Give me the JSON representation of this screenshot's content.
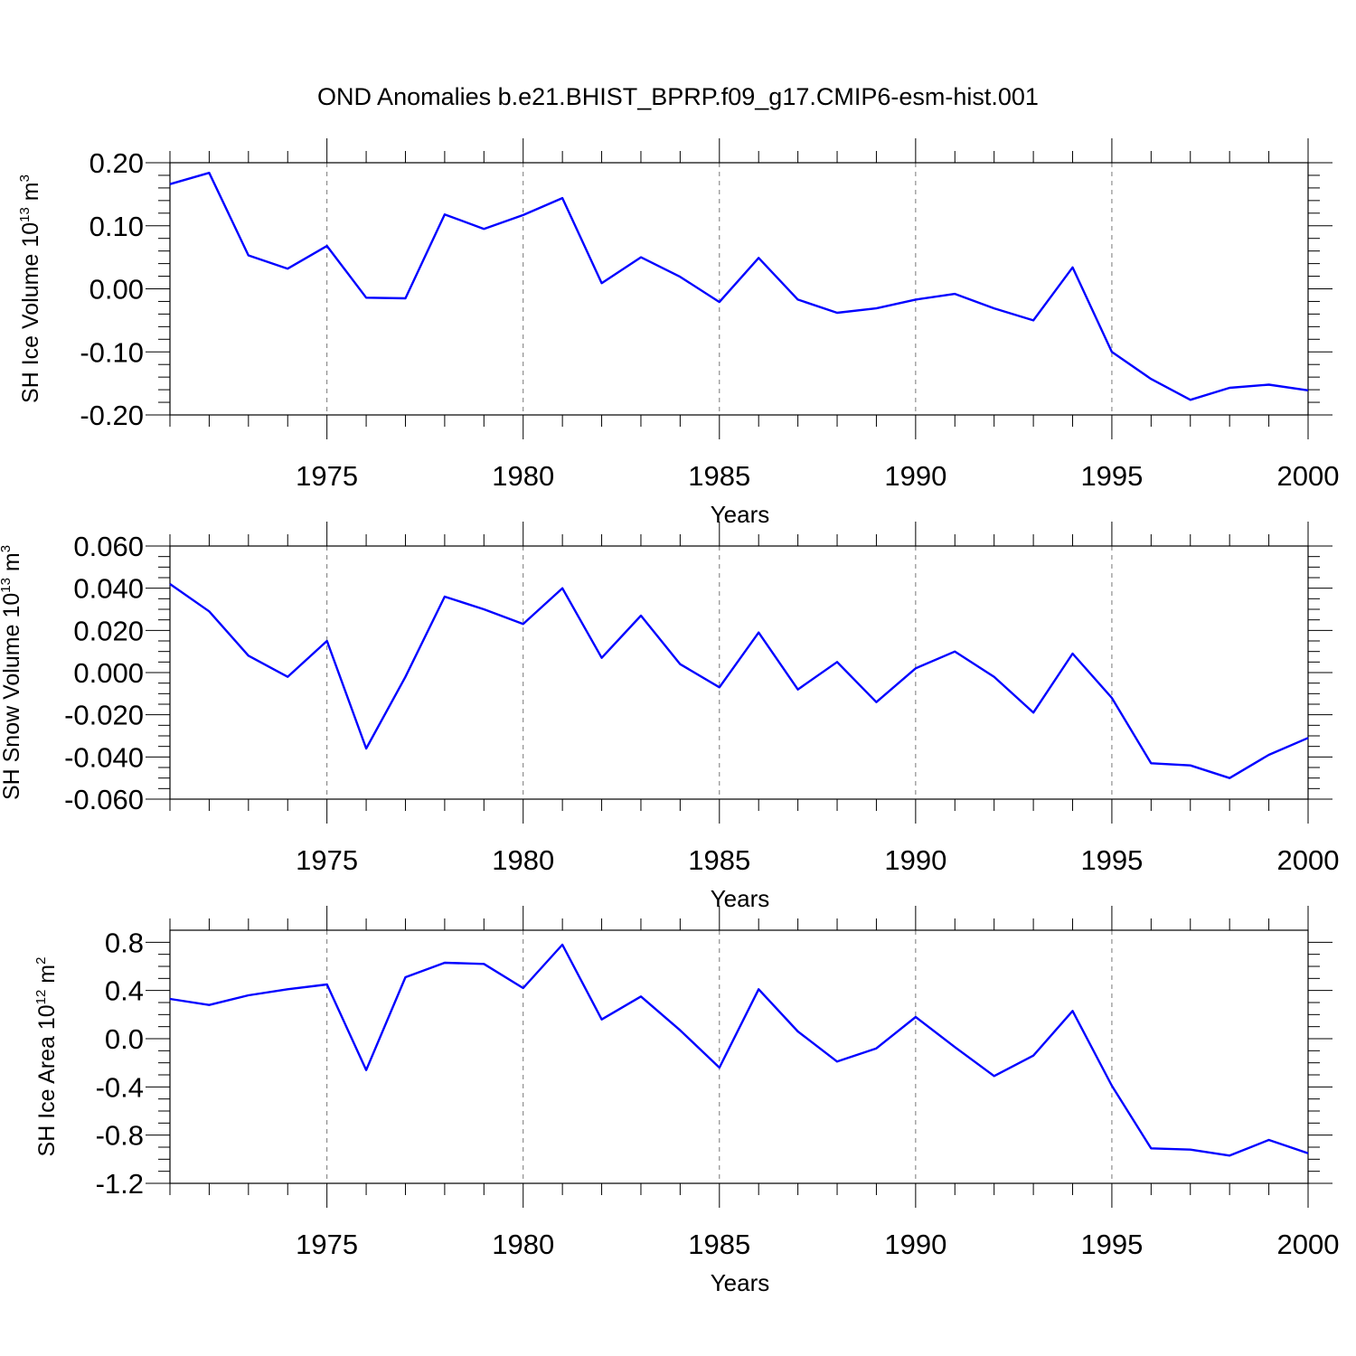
{
  "title": "OND Anomalies b.e21.BHIST_BPRP.f09_g17.CMIP6-esm-hist.001",
  "chart_data": [
    {
      "type": "line",
      "xlabel": "Years",
      "ylabel": {
        "prefix": "SH Ice Volume 10",
        "exp": "13",
        "unit": " m",
        "unit_exp": "3"
      },
      "xlim": [
        1971,
        2000
      ],
      "ylim": [
        -0.2,
        0.2
      ],
      "yticks": [
        -0.2,
        -0.1,
        0.0,
        0.1,
        0.2
      ],
      "ytick_labels": [
        "-0.20",
        "-0.10",
        "0.00",
        "0.10",
        "0.20"
      ],
      "xticks": [
        1975,
        1980,
        1985,
        1990,
        1995,
        2000
      ],
      "xtick_labels": [
        "1975",
        "1980",
        "1985",
        "1990",
        "1995",
        "2000"
      ],
      "grid": "dashed vertical at major x ticks",
      "line_color": "#0000ff",
      "x": [
        1971,
        1972,
        1973,
        1974,
        1975,
        1976,
        1977,
        1978,
        1979,
        1980,
        1981,
        1982,
        1983,
        1984,
        1985,
        1986,
        1987,
        1988,
        1989,
        1990,
        1991,
        1992,
        1993,
        1994,
        1995,
        1996,
        1997,
        1998,
        1999,
        2000
      ],
      "values": [
        0.166,
        0.184,
        0.053,
        0.032,
        0.068,
        -0.014,
        -0.015,
        0.118,
        0.095,
        0.117,
        0.144,
        0.009,
        0.05,
        0.019,
        -0.021,
        0.049,
        -0.017,
        -0.038,
        -0.031,
        -0.017,
        -0.008,
        -0.031,
        -0.05,
        0.034,
        -0.1,
        -0.143,
        -0.176,
        -0.157,
        -0.152,
        -0.161
      ]
    },
    {
      "type": "line",
      "xlabel": "Years",
      "ylabel": {
        "prefix": "SH Snow Volume 10",
        "exp": "13",
        "unit": " m",
        "unit_exp": "3"
      },
      "xlim": [
        1971,
        2000
      ],
      "ylim": [
        -0.06,
        0.06
      ],
      "yticks": [
        -0.06,
        -0.04,
        -0.02,
        0.0,
        0.02,
        0.04,
        0.06
      ],
      "ytick_labels": [
        "-0.060",
        "-0.040",
        "-0.020",
        "0.000",
        "0.020",
        "0.040",
        "0.060"
      ],
      "xticks": [
        1975,
        1980,
        1985,
        1990,
        1995,
        2000
      ],
      "xtick_labels": [
        "1975",
        "1980",
        "1985",
        "1990",
        "1995",
        "2000"
      ],
      "grid": "dashed vertical at major x ticks",
      "line_color": "#0000ff",
      "x": [
        1971,
        1972,
        1973,
        1974,
        1975,
        1976,
        1977,
        1978,
        1979,
        1980,
        1981,
        1982,
        1983,
        1984,
        1985,
        1986,
        1987,
        1988,
        1989,
        1990,
        1991,
        1992,
        1993,
        1994,
        1995,
        1996,
        1997,
        1998,
        1999,
        2000
      ],
      "values": [
        0.042,
        0.029,
        0.008,
        -0.002,
        0.015,
        -0.036,
        -0.002,
        0.036,
        0.03,
        0.023,
        0.04,
        0.007,
        0.027,
        0.004,
        -0.007,
        0.019,
        -0.008,
        0.005,
        -0.014,
        0.002,
        0.01,
        -0.002,
        -0.019,
        0.009,
        -0.012,
        -0.043,
        -0.044,
        -0.05,
        -0.039,
        -0.031
      ]
    },
    {
      "type": "line",
      "xlabel": "Years",
      "ylabel": {
        "prefix": "SH Ice Area 10",
        "exp": "12",
        "unit": " m",
        "unit_exp": "2"
      },
      "xlim": [
        1971,
        2000
      ],
      "ylim": [
        -1.2,
        0.9
      ],
      "yticks": [
        -1.2,
        -0.8,
        -0.4,
        0.0,
        0.4,
        0.8
      ],
      "ytick_labels": [
        "-1.2",
        "-0.8",
        "-0.4",
        "0.0",
        "0.4",
        "0.8"
      ],
      "xticks": [
        1975,
        1980,
        1985,
        1990,
        1995,
        2000
      ],
      "xtick_labels": [
        "1975",
        "1980",
        "1985",
        "1990",
        "1995",
        "2000"
      ],
      "grid": "dashed vertical at major x ticks",
      "line_color": "#0000ff",
      "x": [
        1971,
        1972,
        1973,
        1974,
        1975,
        1976,
        1977,
        1978,
        1979,
        1980,
        1981,
        1982,
        1983,
        1984,
        1985,
        1986,
        1987,
        1988,
        1989,
        1990,
        1991,
        1992,
        1993,
        1994,
        1995,
        1996,
        1997,
        1998,
        1999,
        2000
      ],
      "values": [
        0.33,
        0.28,
        0.36,
        0.41,
        0.45,
        -0.26,
        0.51,
        0.63,
        0.62,
        0.42,
        0.78,
        0.16,
        0.35,
        0.07,
        -0.24,
        0.41,
        0.06,
        -0.19,
        -0.08,
        0.18,
        -0.07,
        -0.31,
        -0.14,
        0.23,
        -0.39,
        -0.91,
        -0.92,
        -0.97,
        -0.84,
        -0.95
      ]
    }
  ]
}
